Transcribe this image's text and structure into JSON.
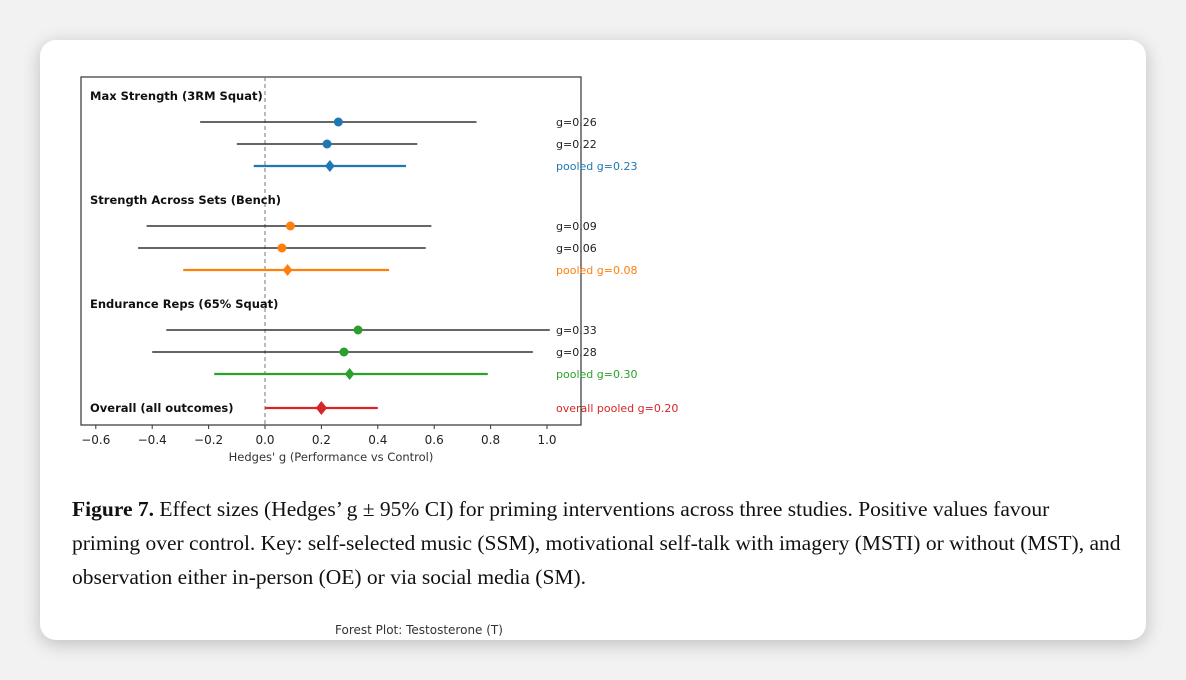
{
  "chart_data": {
    "type": "forest",
    "xlabel": "Hedges' g (Performance vs Control)",
    "xlim": [
      -0.65,
      1.12
    ],
    "xticks": [
      -0.6,
      -0.4,
      -0.2,
      0.0,
      0.2,
      0.4,
      0.6,
      0.8,
      1.0
    ],
    "xtick_labels": [
      "−0.6",
      "−0.4",
      "−0.2",
      "0.0",
      "0.2",
      "0.4",
      "0.6",
      "0.8",
      "1.0"
    ],
    "reference_line": 0.0,
    "groups": [
      {
        "title": "Max Strength (3RM Squat)",
        "color": "#1f77b4",
        "rows": [
          {
            "g": 0.26,
            "lo": -0.23,
            "hi": 0.75,
            "label": "g=0.26",
            "pooled": false
          },
          {
            "g": 0.22,
            "lo": -0.1,
            "hi": 0.54,
            "label": "g=0.22",
            "pooled": false
          },
          {
            "g": 0.23,
            "lo": -0.04,
            "hi": 0.5,
            "label": "pooled g=0.23",
            "pooled": true
          }
        ]
      },
      {
        "title": "Strength Across Sets (Bench)",
        "color": "#ff7f0e",
        "rows": [
          {
            "g": 0.09,
            "lo": -0.42,
            "hi": 0.59,
            "label": "g=0.09",
            "pooled": false
          },
          {
            "g": 0.06,
            "lo": -0.45,
            "hi": 0.57,
            "label": "g=0.06",
            "pooled": false
          },
          {
            "g": 0.08,
            "lo": -0.29,
            "hi": 0.44,
            "label": "pooled g=0.08",
            "pooled": true
          }
        ]
      },
      {
        "title": "Endurance Reps (65% Squat)",
        "color": "#2ca02c",
        "rows": [
          {
            "g": 0.33,
            "lo": -0.35,
            "hi": 1.01,
            "label": "g=0.33",
            "pooled": false
          },
          {
            "g": 0.28,
            "lo": -0.4,
            "hi": 0.95,
            "label": "g=0.28",
            "pooled": false
          },
          {
            "g": 0.3,
            "lo": -0.18,
            "hi": 0.79,
            "label": "pooled g=0.30",
            "pooled": true
          }
        ]
      },
      {
        "title": "Overall (all outcomes)",
        "color": "#d62728",
        "rows": [
          {
            "g": 0.2,
            "lo": 0.0,
            "hi": 0.4,
            "label": "overall pooled g=0.20",
            "pooled": true
          }
        ]
      }
    ]
  },
  "caption": {
    "label": "Figure 7.",
    "text": " Effect sizes (Hedges’ g ± 95% CI) for priming interventions across three studies. Positive values favour priming over control.  Key:  self-selected music (SSM), motivational self-talk with imagery (MSTI) or without (MST), and observation either in-person (OE) or via social media (SM)."
  },
  "next_figure_title": "Forest Plot: Testosterone (T)"
}
